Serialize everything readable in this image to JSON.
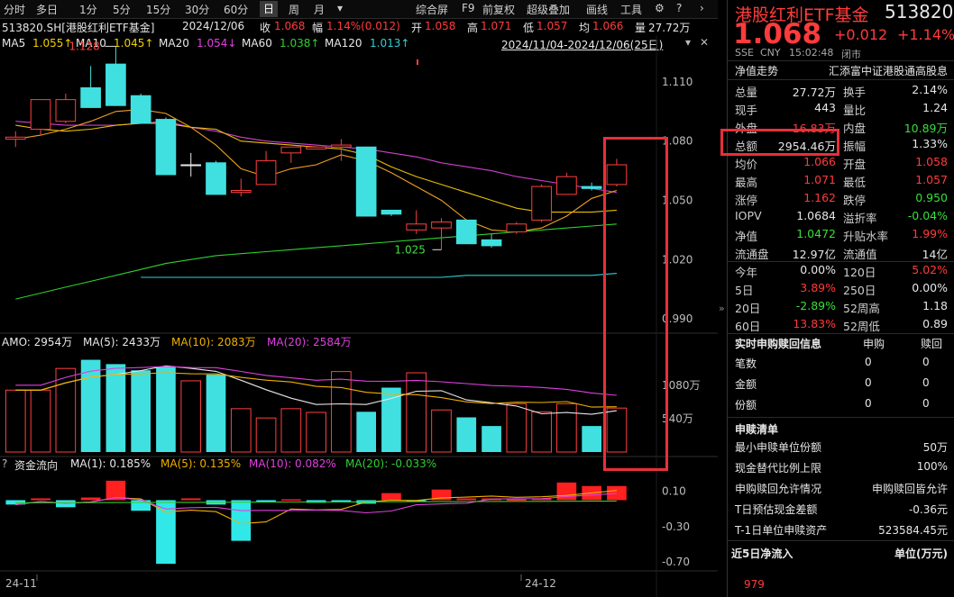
{
  "toolbar": {
    "left": [
      "分时",
      "多日",
      "1分",
      "5分",
      "15分",
      "30分",
      "60分",
      "日",
      "周",
      "月"
    ],
    "selected": "日",
    "right": [
      "综合屏",
      "F9",
      "前复权",
      "超级叠加",
      "画线",
      "工具"
    ],
    "settings_icon": "gear-icon",
    "help_icon": "question-icon"
  },
  "info_bar": {
    "code": "513820.SH[港股红利ETF基金]",
    "date": "2024/12/06",
    "close_label": "收",
    "close": "1.068",
    "change_label": "幅",
    "change": "1.14%(0.012)",
    "open_label": "开",
    "open": "1.058",
    "high_label": "高",
    "high": "1.071",
    "low_label": "低",
    "low": "1.057",
    "avg_label": "均",
    "avg": "1.066",
    "vol_label": "量",
    "vol": "27.72万",
    "range": "2024/11/04-2024/12/06(25日)"
  },
  "ma_legend": [
    {
      "label": "MA5",
      "value": "1.055↑",
      "color": "#e8e8e8"
    },
    {
      "label": "MA10",
      "value": "1.045↑",
      "color": "#f0d000"
    },
    {
      "label": "MA20",
      "value": "1.054↓",
      "color": "#e040e0"
    },
    {
      "label": "MA60",
      "value": "1.038↑",
      "color": "#30d030"
    },
    {
      "label": "MA120",
      "value": "1.013↑",
      "color": "#30d0d8"
    }
  ],
  "amo_legend": [
    {
      "label": "AMO: 2954万",
      "color": "#e8e8e8"
    },
    {
      "label": "MA(5): 2433万",
      "color": "#e8e8e8"
    },
    {
      "label": "MA(10): 2083万",
      "color": "#f0b000"
    },
    {
      "label": "MA(20): 2584万",
      "color": "#e040e0"
    }
  ],
  "flow_legend": [
    {
      "label": "资金流向",
      "color": "#e8e8e8"
    },
    {
      "label": "MA(1): 0.185%",
      "color": "#e8e8e8"
    },
    {
      "label": "MA(5): 0.135%",
      "color": "#f0b000"
    },
    {
      "label": "MA(10): 0.082%",
      "color": "#e040e0"
    },
    {
      "label": "MA(20): -0.033%",
      "color": "#30d030"
    }
  ],
  "chart_data": {
    "type": "candlestick",
    "price_axis": [
      "1.110",
      "1.080",
      "1.050",
      "1.020",
      "0.990"
    ],
    "price_ylim": [
      0.985,
      1.125
    ],
    "amo_axis": [
      "1080万",
      "540万"
    ],
    "flow_axis": [
      "0.10",
      "-0.30",
      "-0.70"
    ],
    "x_labels": [
      "24-11",
      "24-12"
    ],
    "high_label": "1.128",
    "low_label": "1.025",
    "candles": [
      {
        "o": 1.081,
        "h": 1.085,
        "l": 1.077,
        "c": 1.082
      },
      {
        "o": 1.086,
        "h": 1.1,
        "l": 1.083,
        "c": 1.101
      },
      {
        "o": 1.09,
        "h": 1.104,
        "l": 1.089,
        "c": 1.101
      },
      {
        "o": 1.107,
        "h": 1.118,
        "l": 1.097,
        "c": 1.097
      },
      {
        "o": 1.119,
        "h": 1.128,
        "l": 1.098,
        "c": 1.098
      },
      {
        "o": 1.103,
        "h": 1.104,
        "l": 1.089,
        "c": 1.089
      },
      {
        "o": 1.091,
        "h": 1.092,
        "l": 1.063,
        "c": 1.063
      },
      {
        "o": 1.068,
        "h": 1.074,
        "l": 1.062,
        "c": 1.068
      },
      {
        "o": 1.069,
        "h": 1.07,
        "l": 1.053,
        "c": 1.053
      },
      {
        "o": 1.054,
        "h": 1.061,
        "l": 1.052,
        "c": 1.055
      },
      {
        "o": 1.058,
        "h": 1.075,
        "l": 1.058,
        "c": 1.07
      },
      {
        "o": 1.074,
        "h": 1.077,
        "l": 1.069,
        "c": 1.077
      },
      {
        "o": 1.076,
        "h": 1.077,
        "l": 1.076,
        "c": 1.077
      },
      {
        "o": 1.077,
        "h": 1.081,
        "l": 1.07,
        "c": 1.078
      },
      {
        "o": 1.077,
        "h": 1.077,
        "l": 1.042,
        "c": 1.042
      },
      {
        "o": 1.045,
        "h": 1.045,
        "l": 1.042,
        "c": 1.043
      },
      {
        "o": 1.035,
        "h": 1.045,
        "l": 1.033,
        "c": 1.038
      },
      {
        "o": 1.036,
        "h": 1.041,
        "l": 1.025,
        "c": 1.039
      },
      {
        "o": 1.04,
        "h": 1.04,
        "l": 1.028,
        "c": 1.028
      },
      {
        "o": 1.03,
        "h": 1.033,
        "l": 1.026,
        "c": 1.027
      },
      {
        "o": 1.034,
        "h": 1.039,
        "l": 1.033,
        "c": 1.038
      },
      {
        "o": 1.04,
        "h": 1.058,
        "l": 1.039,
        "c": 1.057
      },
      {
        "o": 1.053,
        "h": 1.064,
        "l": 1.053,
        "c": 1.062
      },
      {
        "o": 1.057,
        "h": 1.059,
        "l": 1.055,
        "c": 1.056
      },
      {
        "o": 1.058,
        "h": 1.071,
        "l": 1.057,
        "c": 1.068
      }
    ],
    "ma5": [
      1.081,
      1.083,
      1.086,
      1.09,
      1.095,
      1.096,
      1.094,
      1.087,
      1.078,
      1.066,
      1.062,
      1.066,
      1.068,
      1.073,
      1.07,
      1.064,
      1.057,
      1.05,
      1.04,
      1.035,
      1.034,
      1.036,
      1.042,
      1.051,
      1.055
    ],
    "ma10": [
      1.088,
      1.086,
      1.085,
      1.086,
      1.088,
      1.089,
      1.089,
      1.087,
      1.086,
      1.08,
      1.079,
      1.078,
      1.077,
      1.076,
      1.073,
      1.067,
      1.062,
      1.058,
      1.054,
      1.05,
      1.046,
      1.044,
      1.044,
      1.044,
      1.045
    ],
    "ma20": [
      1.09,
      1.089,
      1.088,
      1.088,
      1.088,
      1.089,
      1.09,
      1.087,
      1.085,
      1.082,
      1.08,
      1.079,
      1.078,
      1.077,
      1.076,
      1.074,
      1.072,
      1.069,
      1.067,
      1.065,
      1.062,
      1.06,
      1.058,
      1.056,
      1.054
    ],
    "ma60": [
      1.0,
      1.003,
      1.006,
      1.009,
      1.012,
      1.015,
      1.018,
      1.02,
      1.022,
      1.023,
      1.024,
      1.025,
      1.026,
      1.027,
      1.028,
      1.029,
      1.03,
      1.031,
      1.032,
      1.033,
      1.034,
      1.035,
      1.036,
      1.037,
      1.038
    ],
    "ma120": [
      null,
      null,
      null,
      null,
      null,
      1.011,
      1.011,
      1.011,
      1.011,
      1.011,
      1.011,
      1.011,
      1.011,
      1.011,
      1.011,
      1.011,
      1.011,
      1.011,
      1.012,
      1.012,
      1.012,
      1.012,
      1.012,
      1.012,
      1.013
    ],
    "amo": [
      1000,
      1000,
      1350,
      1490,
      1420,
      1320,
      1380,
      1150,
      1250,
      700,
      550,
      700,
      640,
      1300,
      650,
      1040,
      1280,
      680,
      560,
      420,
      780,
      650,
      780,
      420,
      710
    ],
    "amo_ylim": [
      0,
      1600
    ],
    "flow": [
      -0.05,
      0.02,
      -0.08,
      0.03,
      0.22,
      -0.12,
      -0.72,
      0.02,
      -0.05,
      -0.46,
      -0.02,
      0.01,
      -0.03,
      -0.02,
      -0.04,
      0.08,
      -0.01,
      0.12,
      0.02,
      0.02,
      0.01,
      0.02,
      0.2,
      0.16,
      0.16
    ],
    "flow_ylim": [
      -0.8,
      0.3
    ]
  },
  "quote": {
    "name": "港股红利ETF基金",
    "code": "513820",
    "price": "1.068",
    "change": "+0.012",
    "change_pct": "+1.14%",
    "exchange": "SSE",
    "currency": "CNY",
    "time": "15:02:48",
    "status": "闭市",
    "nav_tab": "净值走势",
    "index_name": "汇添富中证港股通高股息"
  },
  "stats": [
    {
      "l1": "总量",
      "v1": "27.72万",
      "c1": "white",
      "l2": "换手",
      "v2": "2.14%",
      "c2": "white"
    },
    {
      "l1": "现手",
      "v1": "443",
      "c1": "white",
      "l2": "量比",
      "v2": "1.24",
      "c2": "white"
    },
    {
      "l1": "外盘",
      "v1": "16.83万",
      "c1": "red",
      "l2": "内盘",
      "v2": "10.89万",
      "c2": "green"
    },
    {
      "l1": "总额",
      "v1": "2954.46万",
      "c1": "white",
      "l2": "振幅",
      "v2": "1.33%",
      "c2": "white"
    },
    {
      "l1": "均价",
      "v1": "1.066",
      "c1": "red",
      "l2": "开盘",
      "v2": "1.058",
      "c2": "red"
    },
    {
      "l1": "最高",
      "v1": "1.071",
      "c1": "red",
      "l2": "最低",
      "v2": "1.057",
      "c2": "red"
    },
    {
      "l1": "涨停",
      "v1": "1.162",
      "c1": "red",
      "l2": "跌停",
      "v2": "0.950",
      "c2": "green"
    },
    {
      "l1": "IOPV",
      "v1": "1.0684",
      "c1": "white",
      "l2": "溢折率",
      "v2": "-0.04%",
      "c2": "green"
    },
    {
      "l1": "净值",
      "v1": "1.0472",
      "c1": "green",
      "l2": "升贴水率",
      "v2": "1.99%",
      "c2": "red"
    },
    {
      "l1": "流通盘",
      "v1": "12.97亿",
      "c1": "white",
      "l2": "流通值",
      "v2": "14亿",
      "c2": "white"
    }
  ],
  "periods": [
    {
      "l1": "今年",
      "v1": "0.00%",
      "c1": "white",
      "l2": "120日",
      "v2": "5.02%",
      "c2": "red"
    },
    {
      "l1": "5日",
      "v1": "3.89%",
      "c1": "red",
      "l2": "250日",
      "v2": "0.00%",
      "c2": "white"
    },
    {
      "l1": "20日",
      "v1": "-2.89%",
      "c1": "green",
      "l2": "52周高",
      "v2": "1.18",
      "c2": "white"
    },
    {
      "l1": "60日",
      "v1": "13.83%",
      "c1": "red",
      "l2": "52周低",
      "v2": "0.89",
      "c2": "white"
    }
  ],
  "subscription": {
    "title": "实时申购赎回信息",
    "col1": "申购",
    "col2": "赎回",
    "rows": [
      {
        "label": "笔数",
        "v1": "0",
        "v2": "0"
      },
      {
        "label": "金额",
        "v1": "0",
        "v2": "0"
      },
      {
        "label": "份额",
        "v1": "0",
        "v2": "0"
      }
    ]
  },
  "redeem_list": {
    "title": "申赎清单",
    "rows": [
      {
        "label": "最小申赎单位份额",
        "value": "50万"
      },
      {
        "label": "现金替代比例上限",
        "value": "100%"
      },
      {
        "label": "申购赎回允许情况",
        "value": "申购赎回皆允许"
      },
      {
        "label": "T日预估现金差额",
        "value": "-0.36元"
      },
      {
        "label": "T-1日单位申赎资产",
        "value": "523584.45元"
      }
    ]
  },
  "inflow": {
    "title": "近5日净流入",
    "unit": "单位(万元)",
    "first_value": "979"
  }
}
